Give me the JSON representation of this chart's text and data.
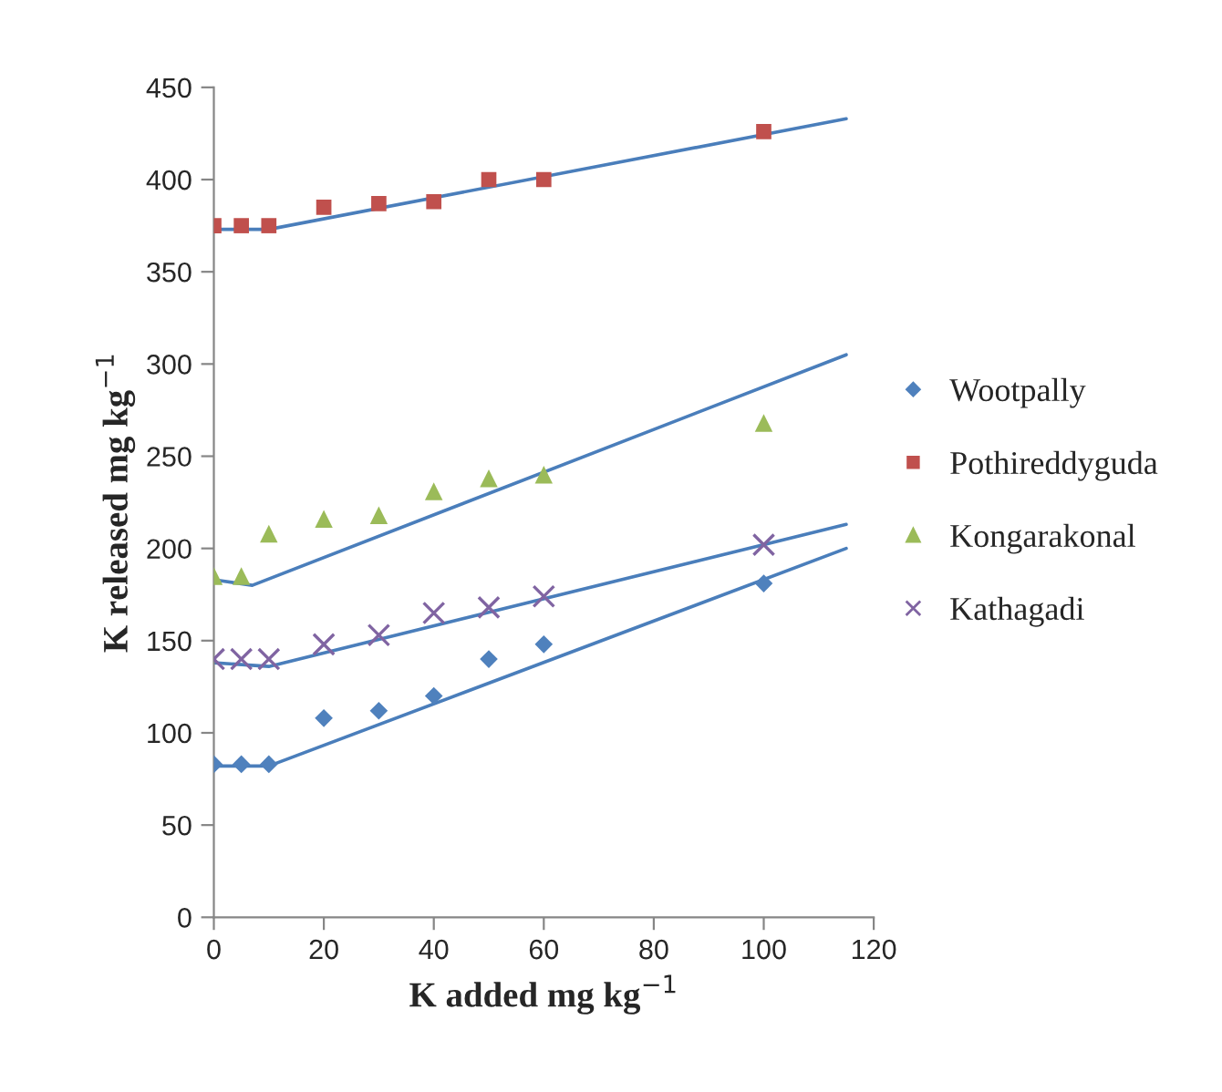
{
  "chart_data": {
    "type": "scatter",
    "xlabel": "K added mg kg$^{−1}$",
    "ylabel": "K released mg kg$^{−1}$",
    "xlim": [
      0,
      120
    ],
    "xticks": [
      0,
      20,
      40,
      60,
      80,
      100,
      120
    ],
    "ylim": [
      0,
      450
    ],
    "yticks": [
      0,
      50,
      100,
      150,
      200,
      250,
      300,
      350,
      400,
      450
    ],
    "grid": false,
    "legend": "right",
    "x": [
      0,
      5,
      10,
      20,
      30,
      40,
      50,
      60,
      100
    ],
    "series": [
      {
        "name": "Wootpally",
        "color": "#4f81bd",
        "marker": "diamond",
        "values": [
          83,
          83,
          83,
          108,
          112,
          120,
          140,
          148,
          181
        ]
      },
      {
        "name": "Pothireddyguda",
        "color": "#c0504d",
        "marker": "square",
        "values": [
          375,
          375,
          375,
          385,
          387,
          388,
          400,
          400,
          426
        ]
      },
      {
        "name": "Kongarakonal",
        "color": "#9bbb59",
        "marker": "triangle",
        "values": [
          185,
          185,
          208,
          216,
          218,
          231,
          238,
          240,
          268
        ]
      },
      {
        "name": "Kathagadi",
        "color": "#8064a2",
        "marker": "cross",
        "values": [
          140,
          140,
          140,
          148,
          153,
          165,
          168,
          174,
          202
        ]
      },
      {
        "type": "line",
        "color": "#4a7ebb",
        "x": [
          0,
          10,
          115
        ],
        "values": [
          82,
          82,
          200
        ]
      },
      {
        "type": "line",
        "color": "#4a7ebb",
        "x": [
          0,
          10,
          115
        ],
        "values": [
          373,
          373,
          433
        ]
      },
      {
        "type": "line",
        "color": "#4a7ebb",
        "x": [
          0,
          7,
          115
        ],
        "values": [
          183,
          180,
          305
        ]
      },
      {
        "type": "line",
        "color": "#4a7ebb",
        "x": [
          0,
          10,
          115
        ],
        "values": [
          138,
          136,
          213
        ]
      }
    ]
  }
}
